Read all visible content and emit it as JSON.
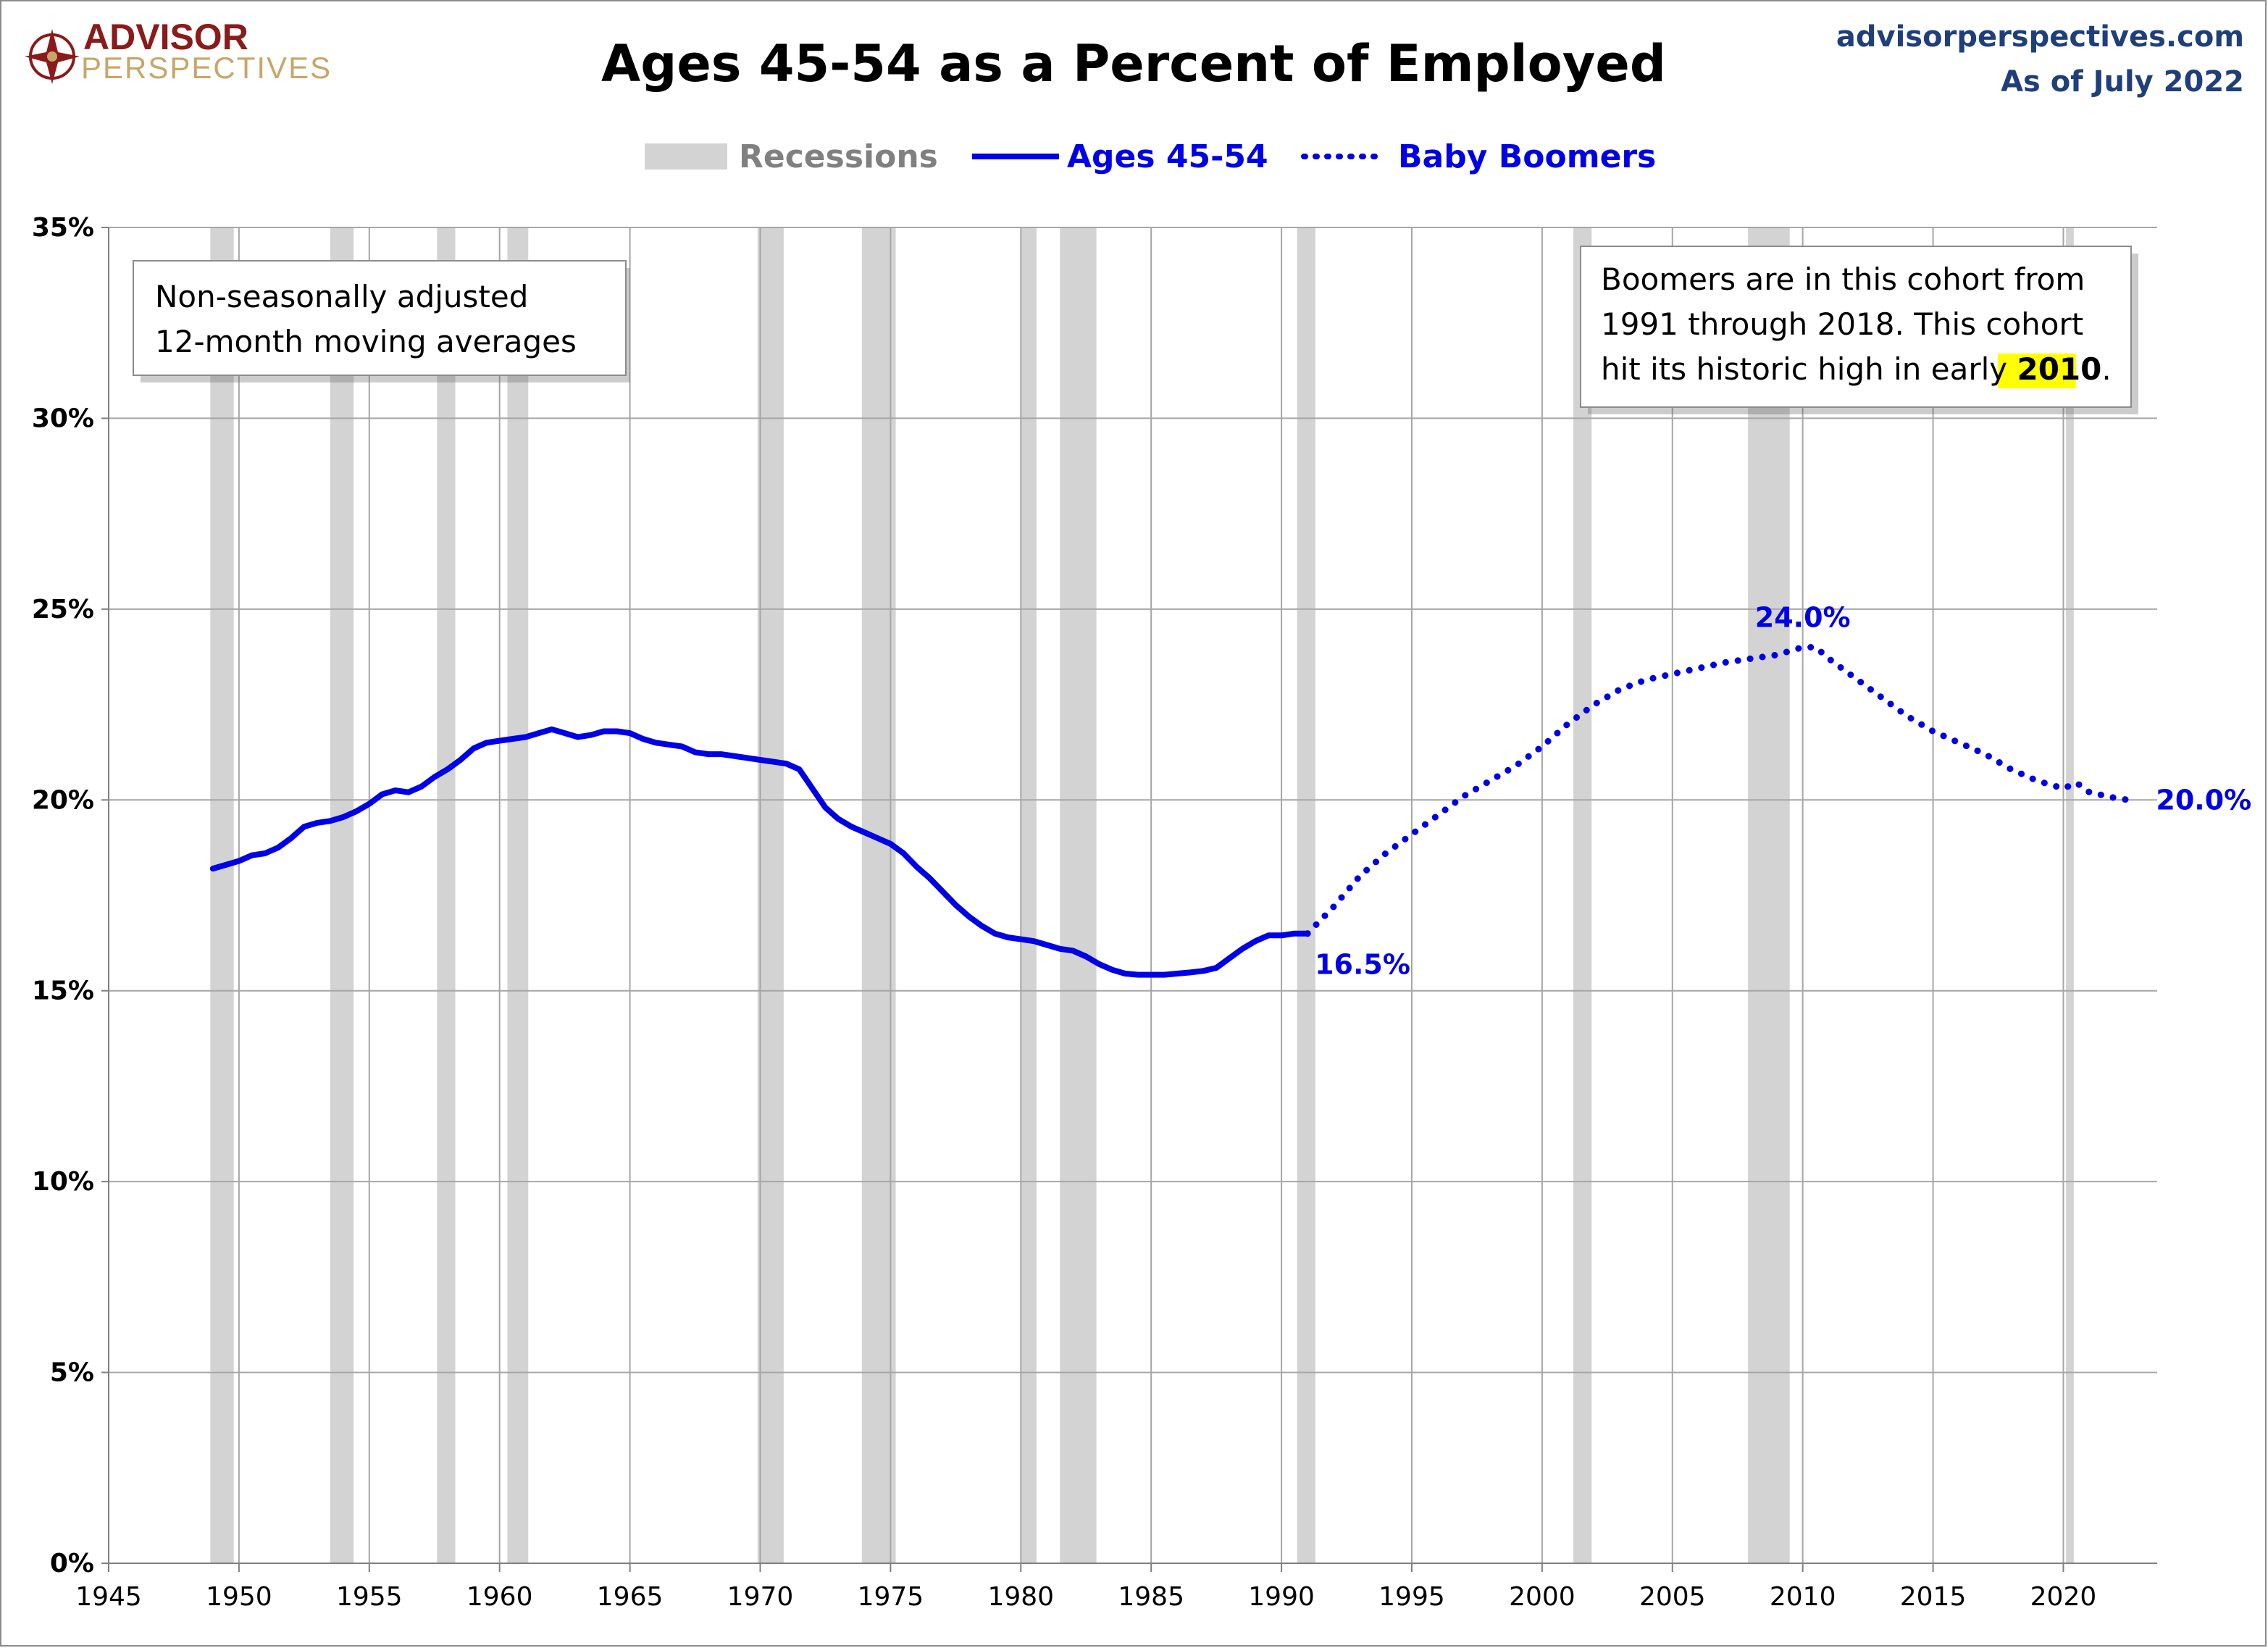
{
  "header": {
    "brand": {
      "line1": "ADVISOR",
      "line2": "PERSPECTIVES"
    },
    "site": "advisorperspectives.com",
    "as_of": "As of July 2022"
  },
  "colors": {
    "series": "#0000e6",
    "recession": "#d3d3d3",
    "grid": "#a6a6a6",
    "brand": "#8b1a1a",
    "site": "#1f3f7a"
  },
  "chart_data": {
    "type": "line",
    "title": "Ages 45-54 as a Percent of Employed",
    "xlabel": "",
    "ylabel": "",
    "xlim": [
      1945,
      2023.6
    ],
    "ylim": [
      0,
      35
    ],
    "xticks": [
      1945,
      1950,
      1955,
      1960,
      1965,
      1970,
      1975,
      1980,
      1985,
      1990,
      1995,
      2000,
      2005,
      2010,
      2015,
      2020
    ],
    "yticks": [
      {
        "value": 0,
        "label": "0%"
      },
      {
        "value": 5,
        "label": "5%"
      },
      {
        "value": 10,
        "label": "10%"
      },
      {
        "value": 15,
        "label": "15%"
      },
      {
        "value": 20,
        "label": "20%"
      },
      {
        "value": 25,
        "label": "25%"
      },
      {
        "value": 30,
        "label": "30%"
      },
      {
        "value": 35,
        "label": "35%"
      }
    ],
    "grid": true,
    "legend": {
      "placement": "top-center",
      "items": [
        {
          "label": "Recessions",
          "style": "band"
        },
        {
          "label": "Ages 45-54",
          "style": "solid"
        },
        {
          "label": "Baby Boomers",
          "style": "dotted"
        }
      ]
    },
    "recessions": [
      [
        1948.9,
        1949.8
      ],
      [
        1953.5,
        1954.4
      ],
      [
        1957.6,
        1958.3
      ],
      [
        1960.3,
        1961.1
      ],
      [
        1969.9,
        1970.9
      ],
      [
        1973.9,
        1975.2
      ],
      [
        1980.0,
        1980.6
      ],
      [
        1981.5,
        1982.9
      ],
      [
        1990.6,
        1991.3
      ],
      [
        2001.2,
        2001.9
      ],
      [
        2007.9,
        2009.5
      ],
      [
        2020.1,
        2020.4
      ]
    ],
    "series": [
      {
        "name": "Ages 45-54",
        "style": "solid",
        "x": [
          1949.0,
          1949.5,
          1950.0,
          1950.5,
          1951.0,
          1951.5,
          1952.0,
          1952.5,
          1953.0,
          1953.5,
          1954.0,
          1954.5,
          1955.0,
          1955.5,
          1956.0,
          1956.5,
          1957.0,
          1957.5,
          1958.0,
          1958.5,
          1959.0,
          1959.5,
          1960.0,
          1960.5,
          1961.0,
          1961.5,
          1962.0,
          1962.5,
          1963.0,
          1963.5,
          1964.0,
          1964.5,
          1965.0,
          1965.5,
          1966.0,
          1966.5,
          1967.0,
          1967.5,
          1968.0,
          1968.5,
          1969.0,
          1969.5,
          1970.0,
          1970.5,
          1971.0,
          1971.5,
          1972.0,
          1972.5,
          1973.0,
          1973.5,
          1974.0,
          1974.5,
          1975.0,
          1975.5,
          1976.0,
          1976.5,
          1977.0,
          1977.5,
          1978.0,
          1978.5,
          1979.0,
          1979.5,
          1980.0,
          1980.5,
          1981.0,
          1981.5,
          1982.0,
          1982.5,
          1983.0,
          1983.5,
          1984.0,
          1984.5,
          1985.0,
          1985.5,
          1986.0,
          1986.5,
          1987.0,
          1987.5,
          1988.0,
          1988.5,
          1989.0,
          1989.5,
          1990.0,
          1990.5,
          1991.0
        ],
        "values": [
          18.2,
          18.3,
          18.4,
          18.55,
          18.6,
          18.75,
          19.0,
          19.3,
          19.4,
          19.45,
          19.55,
          19.7,
          19.9,
          20.15,
          20.25,
          20.2,
          20.35,
          20.6,
          20.8,
          21.05,
          21.35,
          21.5,
          21.55,
          21.6,
          21.65,
          21.75,
          21.85,
          21.75,
          21.65,
          21.7,
          21.8,
          21.8,
          21.75,
          21.6,
          21.5,
          21.45,
          21.4,
          21.25,
          21.2,
          21.2,
          21.15,
          21.1,
          21.05,
          21.0,
          20.95,
          20.8,
          20.3,
          19.8,
          19.5,
          19.3,
          19.15,
          19.0,
          18.85,
          18.6,
          18.25,
          17.95,
          17.6,
          17.25,
          16.95,
          16.7,
          16.5,
          16.4,
          16.35,
          16.3,
          16.2,
          16.1,
          16.05,
          15.9,
          15.7,
          15.55,
          15.45,
          15.42,
          15.42,
          15.42,
          15.45,
          15.48,
          15.52,
          15.6,
          15.85,
          16.1,
          16.3,
          16.45,
          16.45,
          16.5,
          16.5
        ]
      },
      {
        "name": "Baby Boomers",
        "style": "dotted",
        "x": [
          1991.0,
          1992.0,
          1993.0,
          1994.0,
          1995.0,
          1996.0,
          1997.0,
          1998.0,
          1999.0,
          2000.0,
          2001.0,
          2002.0,
          2003.0,
          2004.0,
          2005.0,
          2006.0,
          2007.0,
          2008.0,
          2009.0,
          2010.0,
          2010.5,
          2011.0,
          2012.0,
          2013.0,
          2014.0,
          2015.0,
          2016.0,
          2017.0,
          2018.0,
          2019.0,
          2020.0,
          2020.5,
          2021.0,
          2022.0,
          2022.5
        ],
        "values": [
          16.5,
          17.2,
          18.0,
          18.6,
          19.1,
          19.6,
          20.1,
          20.5,
          20.9,
          21.4,
          22.0,
          22.5,
          22.9,
          23.15,
          23.3,
          23.45,
          23.6,
          23.7,
          23.8,
          24.0,
          24.0,
          23.7,
          23.2,
          22.7,
          22.2,
          21.8,
          21.5,
          21.2,
          20.8,
          20.5,
          20.3,
          20.45,
          20.2,
          20.05,
          20.0
        ]
      }
    ],
    "annotations": [
      {
        "text": "16.5%",
        "x": 1991.0,
        "y": 16.5,
        "anchor": "below-right"
      },
      {
        "text": "24.0%",
        "x": 2010.0,
        "y": 24.0,
        "anchor": "above"
      },
      {
        "text": "20.0%",
        "x": 2022.5,
        "y": 20.0,
        "anchor": "right"
      }
    ],
    "notes": {
      "left": [
        "Non-seasonally adjusted",
        "12-month moving averages"
      ],
      "right": {
        "line1": "Boomers are in this cohort from",
        "line2": "1991 through 2018. This cohort",
        "line3_prefix": "hit its historic high in early ",
        "line3_highlight": "2010",
        "line3_suffix": "."
      }
    }
  }
}
